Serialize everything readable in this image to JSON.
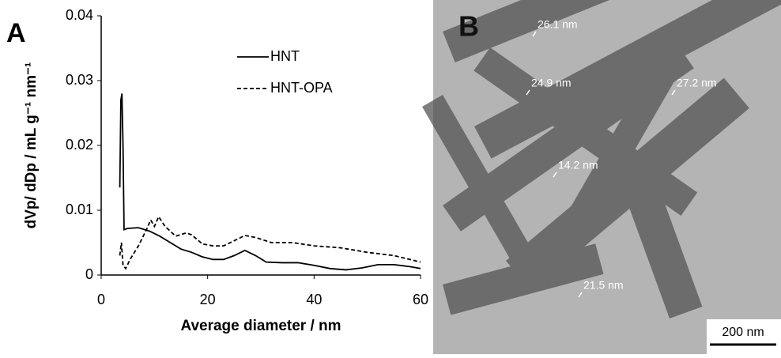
{
  "chart_data": {
    "type": "line",
    "panel_label": "A",
    "x_label": "Average diameter / nm",
    "y_label": "dVp/ dDp / mL g⁻¹ nm⁻¹",
    "xlim": [
      0,
      60
    ],
    "ylim": [
      0,
      0.04
    ],
    "xticks": [
      0,
      20,
      40,
      60
    ],
    "yticks": [
      0,
      0.01,
      0.02,
      0.03,
      0.04
    ],
    "grid": false,
    "legend": "upper-center",
    "series": [
      {
        "name": "HNT",
        "color": "#000000",
        "dash": "solid",
        "x": [
          3.5,
          3.7,
          3.9,
          4.1,
          4.3,
          5,
          7,
          9,
          11,
          13,
          15,
          17,
          19,
          21,
          23,
          25,
          27,
          29,
          31,
          34,
          37,
          40,
          43,
          46,
          49,
          52,
          55,
          58,
          60
        ],
        "values": [
          0.0135,
          0.027,
          0.028,
          0.02,
          0.007,
          0.0072,
          0.0073,
          0.0068,
          0.006,
          0.005,
          0.004,
          0.0035,
          0.0028,
          0.0024,
          0.0024,
          0.003,
          0.0038,
          0.003,
          0.002,
          0.0019,
          0.0019,
          0.0015,
          0.001,
          0.0008,
          0.0011,
          0.0016,
          0.0016,
          0.0013,
          0.001
        ]
      },
      {
        "name": "HNT-OPA",
        "color": "#000000",
        "dash": "dashed",
        "x": [
          3.5,
          3.8,
          4.1,
          4.6,
          5.5,
          7,
          8.5,
          9.3,
          10,
          10.8,
          12,
          14,
          16,
          17,
          19,
          21,
          23,
          25,
          27,
          29,
          32,
          36,
          40,
          45,
          50,
          55,
          60
        ],
        "values": [
          0.003,
          0.005,
          0.0015,
          0.001,
          0.0025,
          0.0045,
          0.007,
          0.0085,
          0.0075,
          0.009,
          0.0075,
          0.006,
          0.0065,
          0.0062,
          0.0048,
          0.0045,
          0.0045,
          0.0053,
          0.0061,
          0.0058,
          0.005,
          0.005,
          0.0045,
          0.0042,
          0.0035,
          0.003,
          0.002
        ]
      }
    ]
  },
  "image_panel": {
    "panel_label": "B",
    "scale_bar": "200 nm",
    "annotations": [
      "26.1 nm",
      "24.9 nm",
      "27.2 nm",
      "14.2 nm",
      "21.5 nm"
    ]
  }
}
